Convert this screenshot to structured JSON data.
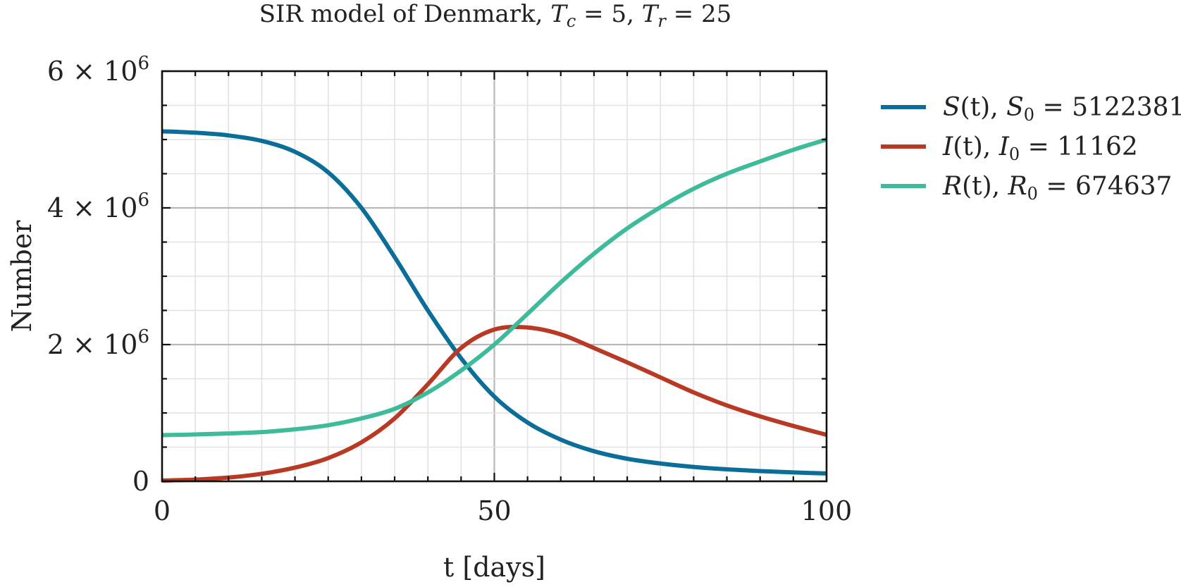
{
  "chart_data": {
    "type": "line",
    "title": "SIR model of Denmark, T_c = 5, T_r = 25",
    "title_parts": {
      "lead": "SIR model of Denmark, ",
      "tc_label": "T",
      "tc_sub": "c",
      "tc_value": " = 5, ",
      "tr_label": "T",
      "tr_sub": "r",
      "tr_value": " = 25"
    },
    "xlabel": "t [days]",
    "ylabel": "Number",
    "xlim": [
      0,
      100
    ],
    "ylim": [
      0,
      6000000
    ],
    "x_ticks": [
      {
        "value": 0,
        "label": "0"
      },
      {
        "value": 50,
        "label": "50"
      },
      {
        "value": 100,
        "label": "100"
      }
    ],
    "y_ticks": [
      {
        "value": 0,
        "label": "0"
      },
      {
        "value": 2000000,
        "label": "2 × 10",
        "exp": "6"
      },
      {
        "value": 4000000,
        "label": "4 × 10",
        "exp": "6"
      },
      {
        "value": 6000000,
        "label": "6 × 10",
        "exp": "6"
      }
    ],
    "grid": true,
    "legend_position": "right, outside plot",
    "x": [
      0,
      5,
      10,
      15,
      20,
      25,
      30,
      35,
      40,
      45,
      50,
      55,
      60,
      65,
      70,
      75,
      80,
      85,
      90,
      95,
      100
    ],
    "series": [
      {
        "name": "S(t), S_0 = 5122381",
        "legend": {
          "fn": "S",
          "arg": "(t), ",
          "sym": "S",
          "sub": "0",
          "value": " = 5122381"
        },
        "color": "#0b6e99",
        "values": [
          5120000,
          5100000,
          5060000,
          4980000,
          4820000,
          4520000,
          4000000,
          3280000,
          2500000,
          1800000,
          1240000,
          860000,
          610000,
          440000,
          330000,
          260000,
          210000,
          175000,
          150000,
          130000,
          115000
        ]
      },
      {
        "name": "I(t), I_0 = 11162",
        "legend": {
          "fn": "I",
          "arg": "(t), ",
          "sym": "I",
          "sub": "0",
          "value": " = 11162"
        },
        "color": "#b83a25",
        "values": [
          11162,
          25000,
          55000,
          110000,
          200000,
          340000,
          570000,
          920000,
          1420000,
          1950000,
          2220000,
          2250000,
          2150000,
          1950000,
          1740000,
          1520000,
          1300000,
          1110000,
          950000,
          810000,
          680000
        ]
      },
      {
        "name": "R(t), R_0 = 674637",
        "legend": {
          "fn": "R",
          "arg": "(t), ",
          "sym": "R",
          "sub": "0",
          "value": " = 674637"
        },
        "color": "#3dbb9a",
        "values": [
          674637,
          685000,
          700000,
          720000,
          760000,
          820000,
          920000,
          1060000,
          1300000,
          1620000,
          2000000,
          2450000,
          2910000,
          3330000,
          3700000,
          4010000,
          4280000,
          4500000,
          4680000,
          4850000,
          5000000
        ]
      }
    ]
  }
}
